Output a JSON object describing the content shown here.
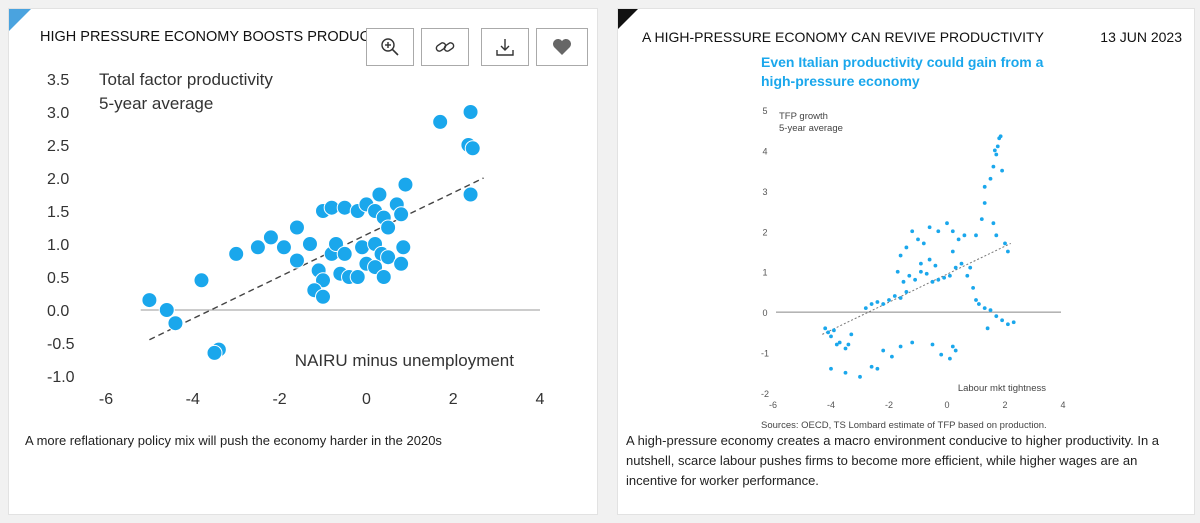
{
  "left_card": {
    "title": "HIGH PRESSURE ECONOMY BOOSTS PRODUCTIVITY",
    "caption": "A more reflationary policy mix will push the economy harder in the 2020s",
    "toolbar": [
      "zoom-in-icon",
      "link-icon",
      "download-icon",
      "heart-icon"
    ]
  },
  "right_card": {
    "title": "A HIGH-PRESSURE ECONOMY CAN REVIVE PRODUCTIVITY",
    "date": "13 JUN 2023",
    "caption": "A high-pressure economy creates a macro environment conducive to higher productivity. In a nutshell, scarce labour pushes firms to become more efficient, while higher wages are an incentive for worker performance."
  },
  "chart_data": [
    {
      "type": "scatter",
      "title": "",
      "ylabel_lines": [
        "Total factor productivity",
        "5-year average"
      ],
      "xlabel": "NAIRU minus unemployment",
      "xlim": [
        -6,
        4
      ],
      "ylim": [
        -1.0,
        3.5
      ],
      "x_ticks": [
        "-6",
        "-4",
        "-2",
        "0",
        "2",
        "4"
      ],
      "y_ticks": [
        "3.5",
        "3.0",
        "2.5",
        "2.0",
        "1.5",
        "1.0",
        "0.5",
        "0.0",
        "-0.5",
        "-1.0"
      ],
      "point_color": "#1aa7ec",
      "trendline": {
        "style": "dashed",
        "x": [
          -5.0,
          2.7
        ],
        "y": [
          -0.45,
          2.0
        ]
      },
      "points": [
        [
          -5.0,
          0.15
        ],
        [
          -4.6,
          0.0
        ],
        [
          -4.4,
          -0.2
        ],
        [
          -3.8,
          0.45
        ],
        [
          -3.4,
          -0.6
        ],
        [
          -3.5,
          -0.65
        ],
        [
          -3.0,
          0.85
        ],
        [
          -2.5,
          0.95
        ],
        [
          -2.2,
          1.1
        ],
        [
          -1.6,
          1.25
        ],
        [
          -1.9,
          0.95
        ],
        [
          -1.6,
          0.75
        ],
        [
          -1.3,
          1.0
        ],
        [
          -1.0,
          1.5
        ],
        [
          -0.8,
          1.55
        ],
        [
          -0.5,
          1.55
        ],
        [
          -0.2,
          1.5
        ],
        [
          0.0,
          1.6
        ],
        [
          0.3,
          1.75
        ],
        [
          0.2,
          1.5
        ],
        [
          0.4,
          1.4
        ],
        [
          0.7,
          1.6
        ],
        [
          0.8,
          1.45
        ],
        [
          0.9,
          1.9
        ],
        [
          0.5,
          1.25
        ],
        [
          -0.8,
          0.85
        ],
        [
          -0.7,
          1.0
        ],
        [
          -0.5,
          0.85
        ],
        [
          -0.1,
          0.95
        ],
        [
          0.2,
          1.0
        ],
        [
          0.35,
          0.85
        ],
        [
          -1.1,
          0.6
        ],
        [
          -1.0,
          0.45
        ],
        [
          -0.6,
          0.55
        ],
        [
          -0.4,
          0.5
        ],
        [
          -0.2,
          0.5
        ],
        [
          0.0,
          0.7
        ],
        [
          0.2,
          0.65
        ],
        [
          0.4,
          0.5
        ],
        [
          -1.2,
          0.3
        ],
        [
          -1.0,
          0.2
        ],
        [
          0.5,
          0.8
        ],
        [
          0.8,
          0.7
        ],
        [
          0.85,
          0.95
        ],
        [
          1.7,
          2.85
        ],
        [
          2.4,
          3.0
        ],
        [
          2.35,
          2.5
        ],
        [
          2.45,
          2.45
        ],
        [
          2.4,
          1.75
        ]
      ]
    },
    {
      "type": "scatter",
      "title": "Even Italian productivity could gain from a high-pressure economy",
      "ylabel_lines": [
        "TFP growth",
        "5-year average"
      ],
      "xlabel": "Labour mkt tightness",
      "source": "Sources: OECD, TS Lombard estimate of TFP based on production.",
      "xlim": [
        -6,
        4
      ],
      "ylim": [
        -2,
        5
      ],
      "x_ticks": [
        "-6",
        "-4",
        "-2",
        "0",
        "2",
        "4"
      ],
      "y_ticks": [
        "5",
        "4",
        "3",
        "2",
        "1",
        "0",
        "-1",
        "-2"
      ],
      "point_color": "#1aa7ec",
      "title_color": "#1aa7ec",
      "trendline": {
        "style": "dotted",
        "x": [
          -4.3,
          2.2
        ],
        "y": [
          -0.55,
          1.7
        ]
      },
      "points": [
        [
          -4.2,
          -0.4
        ],
        [
          -4.1,
          -0.5
        ],
        [
          -4.0,
          -0.6
        ],
        [
          -3.9,
          -0.45
        ],
        [
          -3.8,
          -0.8
        ],
        [
          -3.7,
          -0.75
        ],
        [
          -3.5,
          -0.9
        ],
        [
          -3.4,
          -0.8
        ],
        [
          -3.3,
          -0.55
        ],
        [
          -4.0,
          -1.4
        ],
        [
          -3.5,
          -1.5
        ],
        [
          -3.0,
          -1.6
        ],
        [
          -2.6,
          -1.35
        ],
        [
          -2.4,
          -1.4
        ],
        [
          -2.2,
          -0.95
        ],
        [
          -1.9,
          -1.1
        ],
        [
          -1.6,
          -0.85
        ],
        [
          -1.2,
          -0.75
        ],
        [
          -0.5,
          -0.8
        ],
        [
          -0.2,
          -1.05
        ],
        [
          0.1,
          -1.15
        ],
        [
          0.3,
          -0.95
        ],
        [
          0.2,
          -0.85
        ],
        [
          -2.8,
          0.1
        ],
        [
          -2.6,
          0.2
        ],
        [
          -2.4,
          0.25
        ],
        [
          -2.2,
          0.2
        ],
        [
          -2.0,
          0.3
        ],
        [
          -1.8,
          0.4
        ],
        [
          -1.6,
          0.35
        ],
        [
          -1.4,
          0.5
        ],
        [
          -1.5,
          0.75
        ],
        [
          -1.3,
          0.9
        ],
        [
          -1.1,
          0.8
        ],
        [
          -0.9,
          1.0
        ],
        [
          -0.7,
          0.95
        ],
        [
          -0.5,
          0.75
        ],
        [
          -0.3,
          0.8
        ],
        [
          -0.1,
          0.85
        ],
        [
          0.1,
          0.9
        ],
        [
          0.3,
          1.1
        ],
        [
          0.5,
          1.2
        ],
        [
          0.7,
          0.9
        ],
        [
          0.9,
          0.6
        ],
        [
          1.0,
          0.3
        ],
        [
          1.1,
          0.2
        ],
        [
          1.3,
          0.1
        ],
        [
          1.5,
          0.05
        ],
        [
          1.7,
          -0.1
        ],
        [
          1.9,
          -0.2
        ],
        [
          2.1,
          -0.3
        ],
        [
          2.3,
          -0.25
        ],
        [
          1.4,
          -0.4
        ],
        [
          -1.6,
          1.4
        ],
        [
          -1.4,
          1.6
        ],
        [
          -1.2,
          2.0
        ],
        [
          -1.0,
          1.8
        ],
        [
          -0.8,
          1.7
        ],
        [
          -0.6,
          2.1
        ],
        [
          -0.3,
          2.0
        ],
        [
          0.0,
          2.2
        ],
        [
          0.2,
          2.0
        ],
        [
          0.4,
          1.8
        ],
        [
          0.6,
          1.9
        ],
        [
          -0.9,
          1.2
        ],
        [
          -0.6,
          1.3
        ],
        [
          0.8,
          1.1
        ],
        [
          -1.7,
          1.0
        ],
        [
          -0.4,
          1.15
        ],
        [
          0.2,
          1.5
        ],
        [
          1.0,
          1.9
        ],
        [
          1.2,
          2.3
        ],
        [
          1.3,
          2.7
        ],
        [
          1.3,
          3.1
        ],
        [
          1.5,
          3.3
        ],
        [
          1.6,
          3.6
        ],
        [
          1.7,
          3.9
        ],
        [
          1.75,
          4.1
        ],
        [
          1.8,
          4.3
        ],
        [
          1.65,
          4.0
        ],
        [
          1.9,
          3.5
        ],
        [
          1.85,
          4.35
        ],
        [
          1.6,
          2.2
        ],
        [
          1.7,
          1.9
        ],
        [
          2.0,
          1.7
        ],
        [
          2.1,
          1.5
        ]
      ]
    }
  ]
}
